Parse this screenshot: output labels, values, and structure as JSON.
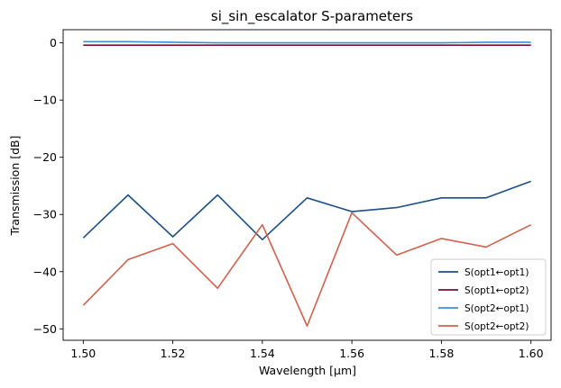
{
  "chart_data": {
    "type": "line",
    "title": "si_sin_escalator S-parameters",
    "xlabel": "Wavelength [μm]",
    "ylabel": "Transmission [dB]",
    "xlim": [
      1.4955,
      1.6045
    ],
    "ylim": [
      -52.0,
      2.3
    ],
    "x_ticks": [
      1.5,
      1.52,
      1.54,
      1.56,
      1.58,
      1.6
    ],
    "x_tick_labels": [
      "1.50",
      "1.52",
      "1.54",
      "1.56",
      "1.58",
      "1.60"
    ],
    "y_ticks": [
      0,
      -10,
      -20,
      -30,
      -40,
      -50
    ],
    "y_tick_labels": [
      "0",
      "−10",
      "−20",
      "−30",
      "−40",
      "−50"
    ],
    "grid": false,
    "legend_position": "lower-right",
    "x": [
      1.5,
      1.51,
      1.52,
      1.53,
      1.54,
      1.55,
      1.56,
      1.57,
      1.58,
      1.59,
      1.6
    ],
    "series": [
      {
        "name": "S(opt1←opt1)",
        "color": "#1b4f8a",
        "values": [
          -34.1,
          -26.6,
          -33.9,
          -26.6,
          -34.4,
          -27.1,
          -29.5,
          -28.8,
          -27.1,
          -27.1,
          -24.2
        ]
      },
      {
        "name": "S(opt1←opt2)",
        "color": "#7a0f2e",
        "values": [
          -0.4,
          -0.4,
          -0.4,
          -0.4,
          -0.4,
          -0.4,
          -0.4,
          -0.4,
          -0.4,
          -0.4,
          -0.4
        ]
      },
      {
        "name": "S(opt2←opt1)",
        "color": "#3b8fd4",
        "values": [
          0.2,
          0.2,
          0.1,
          0.0,
          0.0,
          0.0,
          0.0,
          0.0,
          0.0,
          0.1,
          0.1
        ]
      },
      {
        "name": "S(opt2←opt2)",
        "color": "#d4604a",
        "values": [
          -45.9,
          -37.9,
          -35.1,
          -42.9,
          -31.8,
          -49.5,
          -29.7,
          -37.1,
          -34.2,
          -35.7,
          -31.8
        ]
      }
    ]
  }
}
